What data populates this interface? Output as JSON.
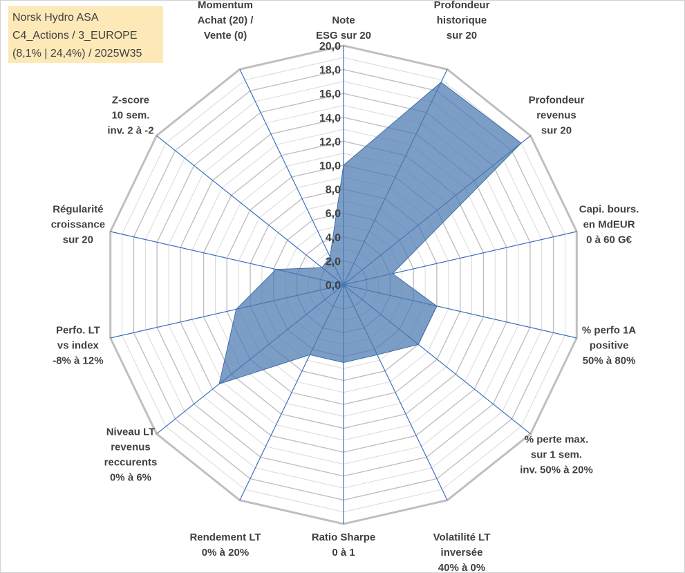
{
  "title_box": {
    "line1": "Norsk Hydro ASA",
    "line2": "C4_Actions / 3_EUROPE",
    "line3": "(8,1% | 24,4%) / 2025W35"
  },
  "colors": {
    "fill": "#4a78b0",
    "spoke": "#3a6fc0",
    "grid_major": "#bfbfbf",
    "grid_minor": "#d9d9d9",
    "text": "#404040",
    "title_bg": "#fde9b8"
  },
  "chart_data": {
    "type": "radar",
    "ylim": [
      0,
      20
    ],
    "grid": true,
    "tick_labels": [
      "0,0",
      "2,0",
      "4,0",
      "6,0",
      "8,0",
      "10,0",
      "12,0",
      "14,0",
      "16,0",
      "18,0",
      "20,0"
    ],
    "categories": [
      [
        "Note",
        "ESG sur 20"
      ],
      [
        "Profondeur",
        "historique",
        "sur 20"
      ],
      [
        "Profondeur",
        "revenus",
        "sur 20"
      ],
      [
        "Capi. bours.",
        "en MdEUR",
        "0 à 60 G€"
      ],
      [
        "% perfo 1A",
        "positive",
        "50% à 80%"
      ],
      [
        "% perte max.",
        "sur 1 sem.",
        "inv. 50% à 20%"
      ],
      [
        "Volatilité LT",
        "inversée",
        "40% à 0%"
      ],
      [
        "Ratio Sharpe",
        "0 à 1"
      ],
      [
        "Rendement LT",
        "0% à 20%"
      ],
      [
        "Niveau LT",
        "revenus",
        "reccurents",
        "0% à 6%"
      ],
      [
        "Perfo. LT",
        "vs index",
        "-8% à 12%"
      ],
      [
        "Régularité",
        "croissance",
        "sur 20"
      ],
      [
        "Z-score",
        "10 sem.",
        "inv. 2 à -2"
      ],
      [
        "Momentum",
        "Achat (20) /",
        "Vente (0)"
      ]
    ],
    "values": [
      10.0,
      18.8,
      19.0,
      4.2,
      8.0,
      8.0,
      6.5,
      6.5,
      6.5,
      13.3,
      9.2,
      5.8,
      2.3,
      2.6
    ]
  }
}
